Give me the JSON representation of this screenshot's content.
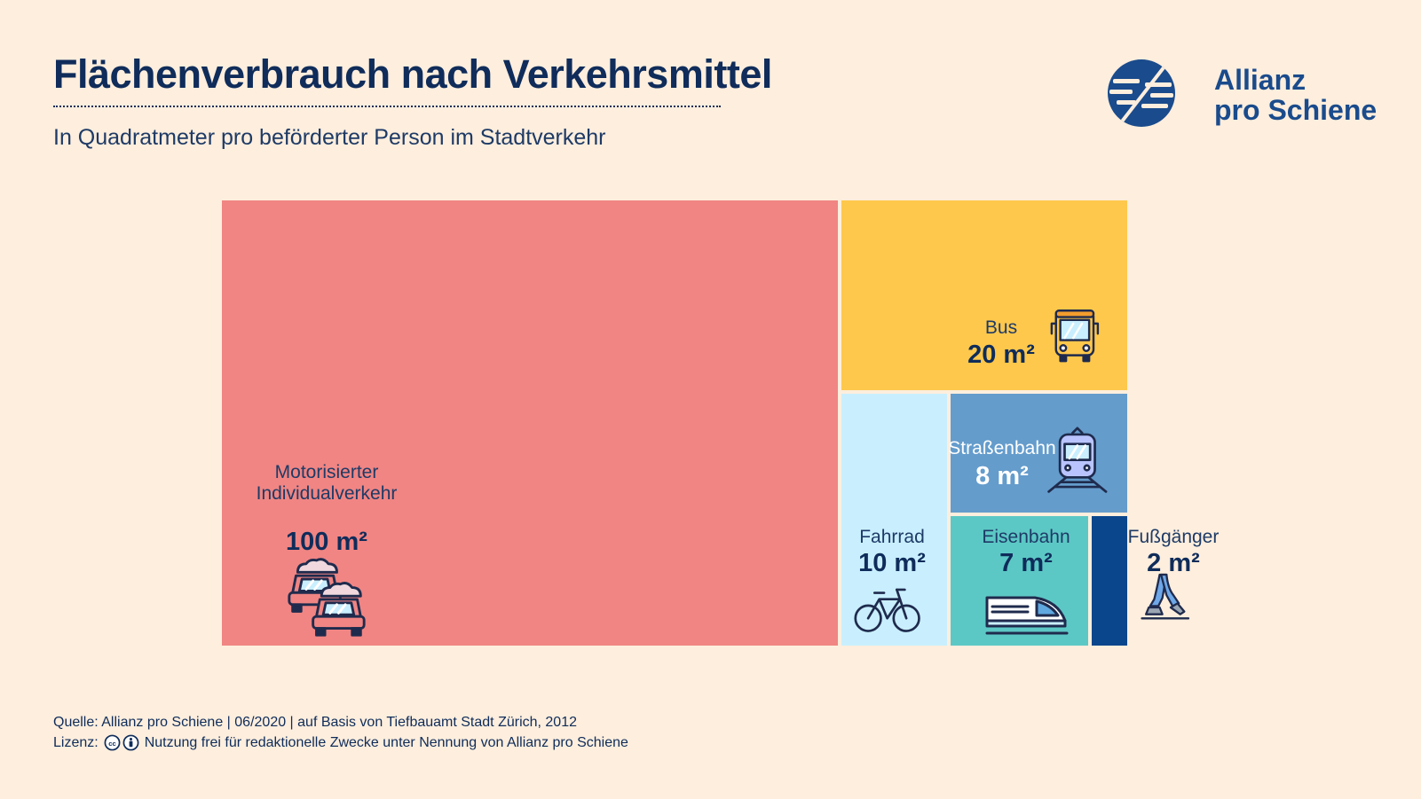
{
  "header": {
    "title": "Flächenverbrauch nach Verkehrsmittel",
    "subtitle": "In Quadratmeter pro beförderter Person im Stadtverkehr"
  },
  "logo": {
    "line1": "Allianz",
    "line2": "pro Schiene",
    "icon": "allianz-pro-schiene-logo-icon"
  },
  "chart_data": {
    "type": "treemap",
    "unit": "m²",
    "items": [
      {
        "label": "Motorisierter\nIndividualverkehr",
        "value": 100,
        "value_label": "100 m²",
        "color": "#f08583",
        "icon": "cars-icon"
      },
      {
        "label": "Bus",
        "value": 20,
        "value_label": "20 m²",
        "color": "#fec84c",
        "icon": "bus-icon"
      },
      {
        "label": "Fahrrad",
        "value": 10,
        "value_label": "10 m²",
        "color": "#c9efff",
        "icon": "bicycle-icon"
      },
      {
        "label": "Straßenbahn",
        "value": 8,
        "value_label": "8 m²",
        "color": "#649ccc",
        "icon": "tram-icon"
      },
      {
        "label": "Eisenbahn",
        "value": 7,
        "value_label": "7 m²",
        "color": "#5cc8c5",
        "icon": "train-icon"
      },
      {
        "label": "Fußgänger",
        "value": 2,
        "value_label": "2 m²",
        "color": "#0a468c",
        "icon": "walking-legs-icon"
      }
    ]
  },
  "footer": {
    "source": "Quelle: Allianz pro Schiene | 06/2020 | auf Basis von Tiefbauamt Stadt Zürich, 2012",
    "license_label": "Lizenz:",
    "license_text": "Nutzung frei für redaktionelle Zwecke unter Nennung von Allianz pro Schiene",
    "icons": [
      "cc-icon",
      "by-icon"
    ]
  }
}
